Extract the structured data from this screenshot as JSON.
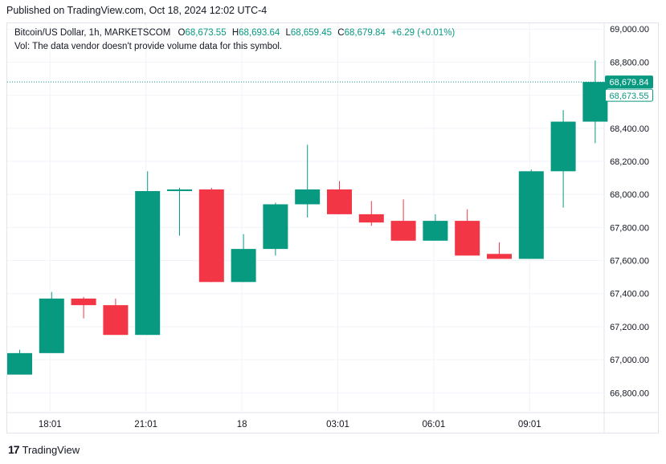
{
  "header": {
    "published": "Published on TradingView.com, Oct 18, 2024 12:02 UTC-4"
  },
  "legend": {
    "symbol": "Bitcoin/US Dollar, 1h, MARKETSCOM",
    "o_label": "O",
    "o_value": "68,673.55",
    "h_label": "H",
    "h_value": "68,693.64",
    "l_label": "L",
    "l_value": "68,659.45",
    "c_label": "C",
    "c_value": "68,679.84",
    "change": "+6.29 (+0.01%)",
    "volume_note": "Vol: The data vendor doesn't provide volume data for this symbol."
  },
  "footer": {
    "logo_text": "TradingView",
    "logo_icon": "tradingview-logo-icon"
  },
  "colors": {
    "up": "#089981",
    "down": "#f23645",
    "grid": "#f0f3fa",
    "axis_text": "#131722"
  },
  "chart_data": {
    "type": "candlestick",
    "y_ticks": [
      "66,800.00",
      "67,000.00",
      "67,200.00",
      "67,400.00",
      "67,600.00",
      "67,800.00",
      "68,000.00",
      "68,200.00",
      "68,400.00",
      "68,600.00",
      "68,800.00",
      "69,000.00"
    ],
    "y_tick_values": [
      66800,
      67000,
      67200,
      67400,
      67600,
      67800,
      68000,
      68200,
      68400,
      68600,
      68800,
      69000
    ],
    "ylim": [
      66680,
      69035
    ],
    "x_ticks": [
      {
        "label": "18:01",
        "index": 1
      },
      {
        "label": "21:01",
        "index": 4
      },
      {
        "label": "18",
        "index": 7
      },
      {
        "label": "03:01",
        "index": 10
      },
      {
        "label": "06:01",
        "index": 13
      },
      {
        "label": "09:01",
        "index": 16
      }
    ],
    "last_price_label": "68,679.84",
    "open_price_label": "68,673.55",
    "last_price": 68679.84,
    "open_price": 68673.55,
    "candles": [
      {
        "o": 66910,
        "h": 67060,
        "l": 66910,
        "c": 67040
      },
      {
        "o": 67040,
        "h": 67410,
        "l": 67040,
        "c": 67370
      },
      {
        "o": 67370,
        "h": 67380,
        "l": 67250,
        "c": 67330
      },
      {
        "o": 67330,
        "h": 67370,
        "l": 67150,
        "c": 67150
      },
      {
        "o": 67150,
        "h": 68140,
        "l": 67150,
        "c": 68020
      },
      {
        "o": 68020,
        "h": 68040,
        "l": 67750,
        "c": 68030
      },
      {
        "o": 68030,
        "h": 68040,
        "l": 67470,
        "c": 67470
      },
      {
        "o": 67470,
        "h": 67760,
        "l": 67470,
        "c": 67670
      },
      {
        "o": 67670,
        "h": 67950,
        "l": 67630,
        "c": 67940
      },
      {
        "o": 67940,
        "h": 68300,
        "l": 67860,
        "c": 68030
      },
      {
        "o": 68030,
        "h": 68080,
        "l": 67880,
        "c": 67880
      },
      {
        "o": 67880,
        "h": 67960,
        "l": 67810,
        "c": 67830
      },
      {
        "o": 67840,
        "h": 67970,
        "l": 67720,
        "c": 67720
      },
      {
        "o": 67720,
        "h": 67880,
        "l": 67720,
        "c": 67840
      },
      {
        "o": 67840,
        "h": 67910,
        "l": 67630,
        "c": 67630
      },
      {
        "o": 67640,
        "h": 67710,
        "l": 67610,
        "c": 67610
      },
      {
        "o": 67610,
        "h": 68150,
        "l": 67610,
        "c": 68140
      },
      {
        "o": 68140,
        "h": 68510,
        "l": 67920,
        "c": 68440
      },
      {
        "o": 68440,
        "h": 68810,
        "l": 68310,
        "c": 68680
      }
    ]
  }
}
